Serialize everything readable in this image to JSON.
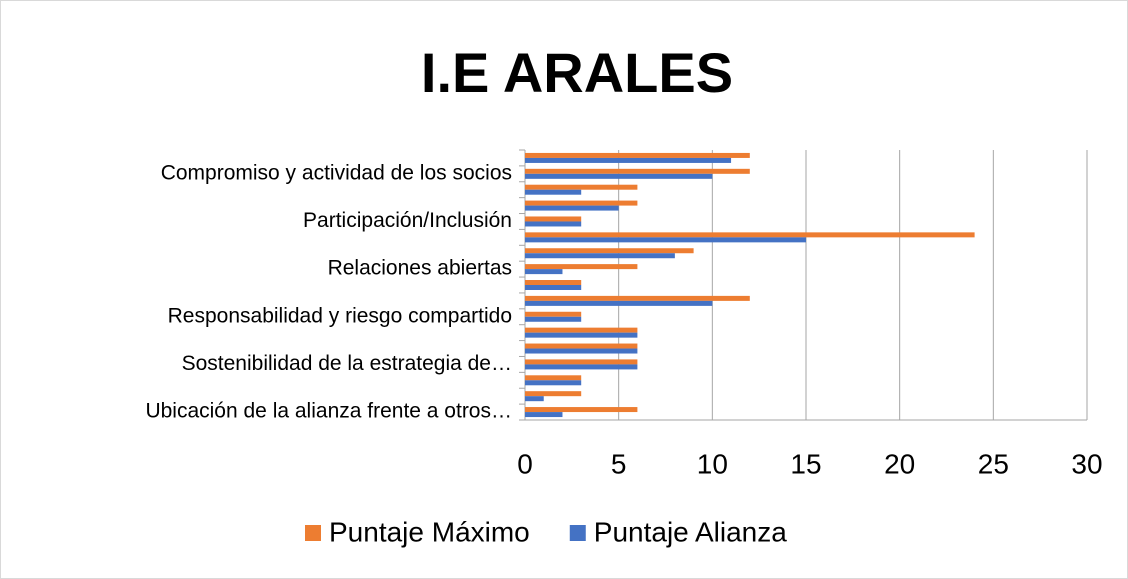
{
  "chart_data": {
    "type": "barh",
    "title": "I.E ARALES",
    "categories": [
      "Ubicación de la alianza frente a otros…",
      null,
      null,
      "Sostenibilidad de la estrategia de…",
      null,
      null,
      "Responsabilidad y riesgo compartido",
      null,
      null,
      "Relaciones abiertas",
      null,
      null,
      "Participación/Inclusión",
      null,
      null,
      "Compromiso y actividad de los socios",
      null
    ],
    "series": [
      {
        "name": "Puntaje Máximo",
        "color": "#ed7d31",
        "values": [
          6,
          3,
          3,
          6,
          6,
          6,
          3,
          12,
          3,
          6,
          9,
          24,
          3,
          6,
          6,
          12,
          12
        ]
      },
      {
        "name": "Puntaje Alianza",
        "color": "#4472c4",
        "values": [
          2,
          1,
          3,
          6,
          6,
          6,
          3,
          10,
          3,
          2,
          8,
          15,
          3,
          5,
          3,
          10,
          11
        ]
      }
    ],
    "xlim": [
      0,
      30
    ],
    "xticks": [
      0,
      5,
      10,
      15,
      20,
      25,
      30
    ],
    "grid": true,
    "legend": "bottom"
  }
}
